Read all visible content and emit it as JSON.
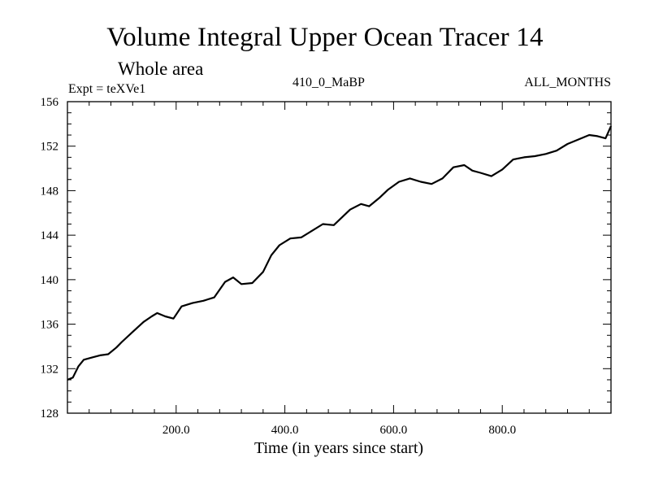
{
  "chart_data": {
    "type": "line",
    "title": "Volume Integral Upper Ocean Tracer 14",
    "subtitle": "Whole area",
    "annotations": {
      "experiment": "Expt = teXVe1",
      "period": "410_0_MaBP",
      "months": "ALL_MONTHS"
    },
    "xlabel": "Time (in years since start)",
    "ylabel": "",
    "xlim": [
      0,
      1000
    ],
    "ylim": [
      128,
      156
    ],
    "x_ticks": [
      200,
      400,
      600,
      800
    ],
    "x_tick_labels": [
      "200.0",
      "400.0",
      "600.0",
      "800.0"
    ],
    "y_ticks": [
      128,
      132,
      136,
      140,
      144,
      148,
      152,
      156
    ],
    "y_tick_labels": [
      "128",
      "132",
      "136",
      "140",
      "144",
      "148",
      "152",
      "156"
    ],
    "grid": false,
    "series": [
      {
        "name": "Tracer 14",
        "color": "#000000",
        "x": [
          0,
          10,
          20,
          30,
          45,
          60,
          75,
          90,
          100,
          120,
          140,
          155,
          165,
          180,
          195,
          210,
          230,
          250,
          270,
          290,
          305,
          320,
          340,
          360,
          375,
          390,
          410,
          430,
          450,
          470,
          490,
          505,
          520,
          540,
          555,
          575,
          590,
          610,
          630,
          650,
          670,
          690,
          710,
          730,
          745,
          760,
          780,
          800,
          820,
          840,
          860,
          880,
          900,
          920,
          940,
          960,
          975,
          990,
          1000
        ],
        "y": [
          131.0,
          131.2,
          132.2,
          132.8,
          133.0,
          133.2,
          133.3,
          133.9,
          134.4,
          135.3,
          136.2,
          136.7,
          137.0,
          136.7,
          136.5,
          137.6,
          137.9,
          138.1,
          138.4,
          139.8,
          140.2,
          139.6,
          139.7,
          140.7,
          142.2,
          143.1,
          143.7,
          143.8,
          144.4,
          145.0,
          144.9,
          145.6,
          146.3,
          146.8,
          146.6,
          147.4,
          148.1,
          148.8,
          149.1,
          148.8,
          148.6,
          149.1,
          150.1,
          150.3,
          149.8,
          149.6,
          149.3,
          149.9,
          150.8,
          151.0,
          151.1,
          151.3,
          151.6,
          152.2,
          152.6,
          153.0,
          152.9,
          152.7,
          153.8
        ]
      }
    ]
  }
}
